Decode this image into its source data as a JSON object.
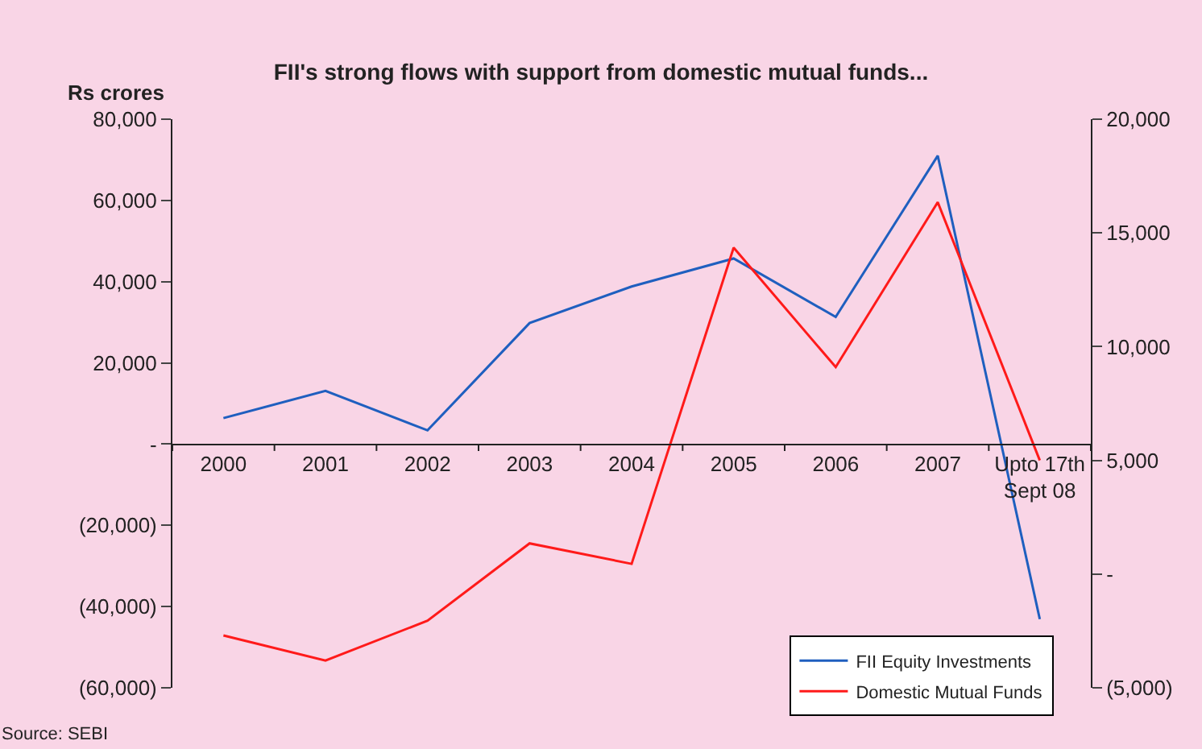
{
  "chart_data": {
    "type": "line",
    "title": "FII's strong flows with support from domestic mutual funds...",
    "ylabel": "Rs crores",
    "categories": [
      "2000",
      "2001",
      "2002",
      "2003",
      "2004",
      "2005",
      "2006",
      "2007",
      "Upto 17th Sept 08"
    ],
    "series": [
      {
        "name": "FII Equity Investments",
        "color": "#1f5fbf",
        "values": [
          6400,
          13100,
          3400,
          29800,
          38800,
          45700,
          31300,
          71000,
          -43100
        ]
      },
      {
        "name": "Domestic Mutual Funds",
        "color": "#ff1a1a",
        "axis": "y2",
        "values": [
          -2700,
          -3800,
          -2050,
          1350,
          450,
          14350,
          9100,
          16350,
          5000
        ]
      }
    ],
    "ylim": [
      -60000,
      80000
    ],
    "yticks": [
      {
        "value": -60000,
        "label": "(60,000)"
      },
      {
        "value": -40000,
        "label": "(40,000)"
      },
      {
        "value": -20000,
        "label": "(20,000)"
      },
      {
        "value": 0,
        "label": "-"
      },
      {
        "value": 20000,
        "label": "20,000"
      },
      {
        "value": 40000,
        "label": "40,000"
      },
      {
        "value": 60000,
        "label": "60,000"
      },
      {
        "value": 80000,
        "label": "80,000"
      }
    ],
    "y2lim": [
      -5000,
      20000
    ],
    "y2ticks": [
      {
        "value": -5000,
        "label": "(5,000)"
      },
      {
        "value": 0,
        "label": "-"
      },
      {
        "value": 5000,
        "label": "5,000"
      },
      {
        "value": 10000,
        "label": "10,000"
      },
      {
        "value": 15000,
        "label": "15,000"
      },
      {
        "value": 20000,
        "label": "20,000"
      }
    ],
    "grid": false,
    "legend": "bottom right",
    "marker": "none",
    "line_style": "solid",
    "annotations": [
      "Source: SEBI"
    ]
  }
}
